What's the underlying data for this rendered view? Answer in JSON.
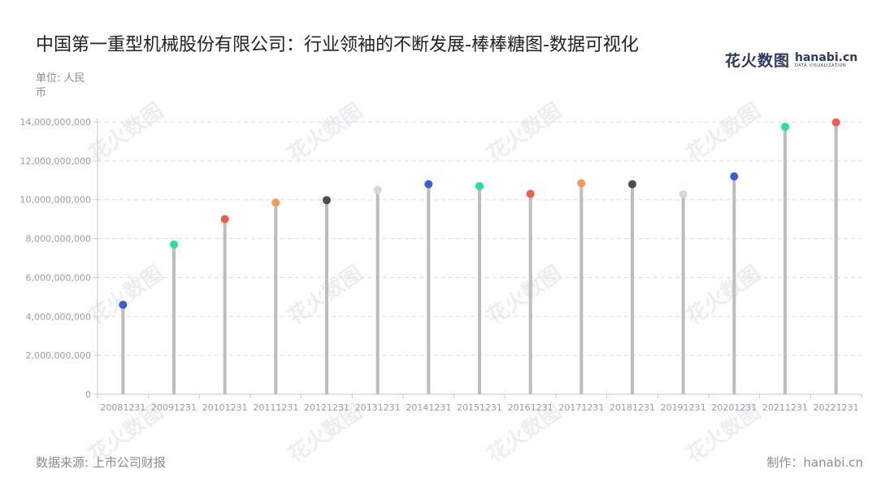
{
  "header": {
    "title": "中国第一重型机械股份有限公司：行业领袖的不断发展-棒棒糖图-数据可视化",
    "unit": "单位: 人民币"
  },
  "logo": {
    "cn": "花火数图",
    "en": "hanabi.cn",
    "sub": "DATA VISUALIZATION",
    "watermark": "花火数图"
  },
  "footer": {
    "source": "数据来源: 上市公司财报",
    "maker": "制作：hanabi.cn"
  },
  "colors": {
    "stem": "#bdbdbd",
    "grid": "#dddddd",
    "axis": "#c7c7c7",
    "tick_text": "#9a9da8",
    "palette": [
      "#3b5bdb",
      "#20e3a0",
      "#f25a4a",
      "#f59a53",
      "#4a4a52",
      "#d5d9e3"
    ]
  },
  "chart_data": {
    "type": "lollipop",
    "categories": [
      "20081231",
      "20091231",
      "20101231",
      "20111231",
      "20121231",
      "20131231",
      "20141231",
      "20151231",
      "20161231",
      "20171231",
      "20181231",
      "20191231",
      "20201231",
      "20211231",
      "20221231"
    ],
    "values": [
      4600000000,
      7700000000,
      9000000000,
      9850000000,
      9980000000,
      10500000000,
      10800000000,
      10700000000,
      10300000000,
      10850000000,
      10800000000,
      10280000000,
      11200000000,
      13750000000,
      13980000000
    ],
    "ylim": [
      0,
      14000000000
    ],
    "yticks": [
      0,
      2000000000,
      4000000000,
      6000000000,
      8000000000,
      10000000000,
      12000000000,
      14000000000
    ],
    "ytick_labels": [
      "0",
      "2,000,000,000",
      "4,000,000,000",
      "6,000,000,000",
      "8,000,000,000",
      "10,000,000,000",
      "12,000,000,000",
      "14,000,000,000"
    ],
    "grid": true,
    "legend": false
  }
}
